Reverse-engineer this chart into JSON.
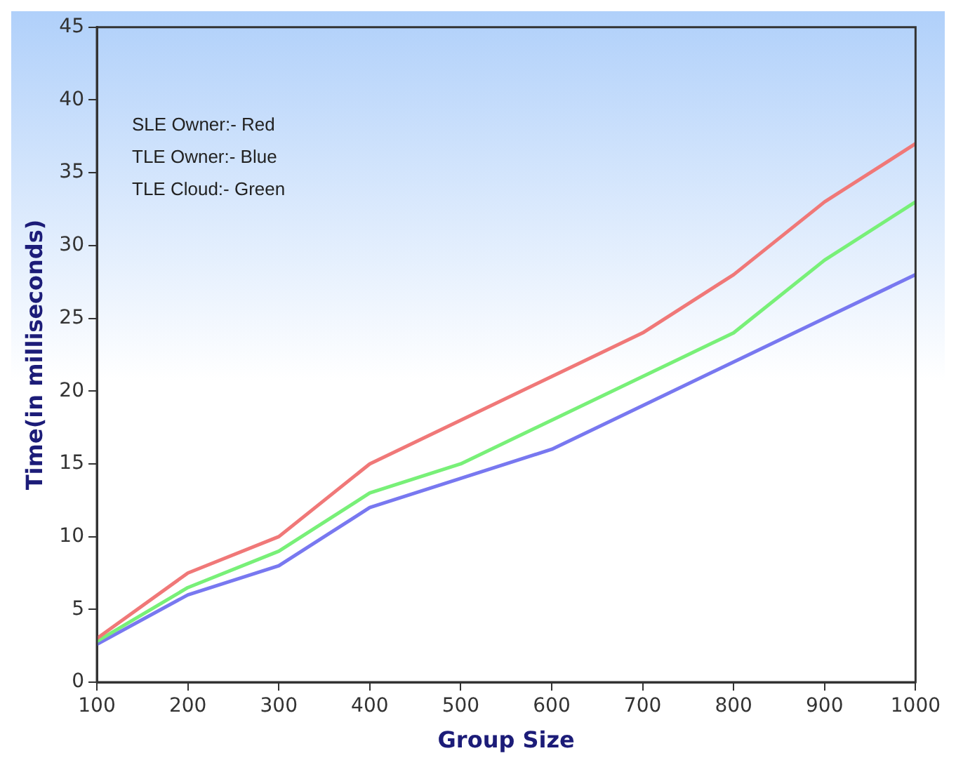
{
  "chart_data": {
    "type": "line",
    "xlabel": "Group Size",
    "ylabel": "Time(in milliseconds)",
    "x": [
      100,
      200,
      300,
      400,
      500,
      600,
      700,
      800,
      900,
      1000
    ],
    "series": [
      {
        "color": "#f07878",
        "values": [
          3,
          7.5,
          10,
          15,
          18,
          21,
          24,
          28,
          33,
          37
        ]
      },
      {
        "color": "#78f078",
        "values": [
          2.8,
          6.5,
          9,
          13,
          15,
          18,
          21,
          24,
          29,
          33
        ]
      },
      {
        "color": "#7878f0",
        "values": [
          2.6,
          6,
          8,
          12,
          14,
          16,
          19,
          22,
          25,
          28
        ]
      }
    ],
    "xlim": [
      100,
      1000
    ],
    "xticks": [
      100,
      200,
      300,
      400,
      500,
      600,
      700,
      800,
      900,
      1000
    ],
    "ylim": [
      0,
      45
    ],
    "yticks": [
      0,
      5,
      10,
      15,
      20,
      25,
      30,
      35,
      40,
      45
    ],
    "grid": false,
    "legend": false,
    "marker": "none",
    "line_style": "solid",
    "annotations": [
      "SLE Owner:- Red",
      "TLE Owner:- Blue",
      "TLE Cloud:- Green"
    ]
  }
}
